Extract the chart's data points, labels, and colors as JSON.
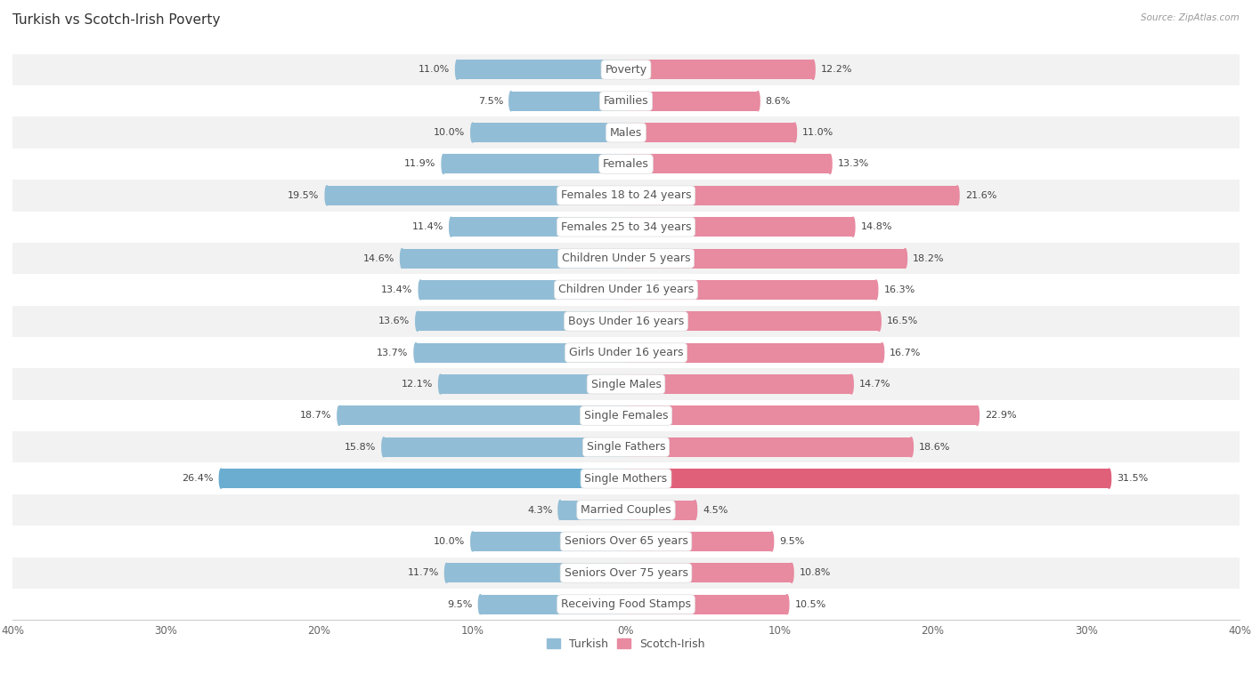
{
  "title": "Turkish vs Scotch-Irish Poverty",
  "source": "Source: ZipAtlas.com",
  "categories": [
    "Poverty",
    "Families",
    "Males",
    "Females",
    "Females 18 to 24 years",
    "Females 25 to 34 years",
    "Children Under 5 years",
    "Children Under 16 years",
    "Boys Under 16 years",
    "Girls Under 16 years",
    "Single Males",
    "Single Females",
    "Single Fathers",
    "Single Mothers",
    "Married Couples",
    "Seniors Over 65 years",
    "Seniors Over 75 years",
    "Receiving Food Stamps"
  ],
  "turkish": [
    11.0,
    7.5,
    10.0,
    11.9,
    19.5,
    11.4,
    14.6,
    13.4,
    13.6,
    13.7,
    12.1,
    18.7,
    15.8,
    26.4,
    4.3,
    10.0,
    11.7,
    9.5
  ],
  "scotch_irish": [
    12.2,
    8.6,
    11.0,
    13.3,
    21.6,
    14.8,
    18.2,
    16.3,
    16.5,
    16.7,
    14.7,
    22.9,
    18.6,
    31.5,
    4.5,
    9.5,
    10.8,
    10.5
  ],
  "turkish_color": "#92bdd6",
  "scotch_irish_color": "#e88aa0",
  "single_mothers_turkish_color": "#6aadd1",
  "single_mothers_scotch_color": "#e0607a",
  "background_color": "#ffffff",
  "row_bg_even": "#f2f2f2",
  "row_bg_odd": "#ffffff",
  "max_val": 40.0,
  "bar_height": 0.62,
  "title_fontsize": 11,
  "label_fontsize": 9,
  "value_fontsize": 8,
  "legend_fontsize": 9,
  "tick_fontsize": 8.5
}
